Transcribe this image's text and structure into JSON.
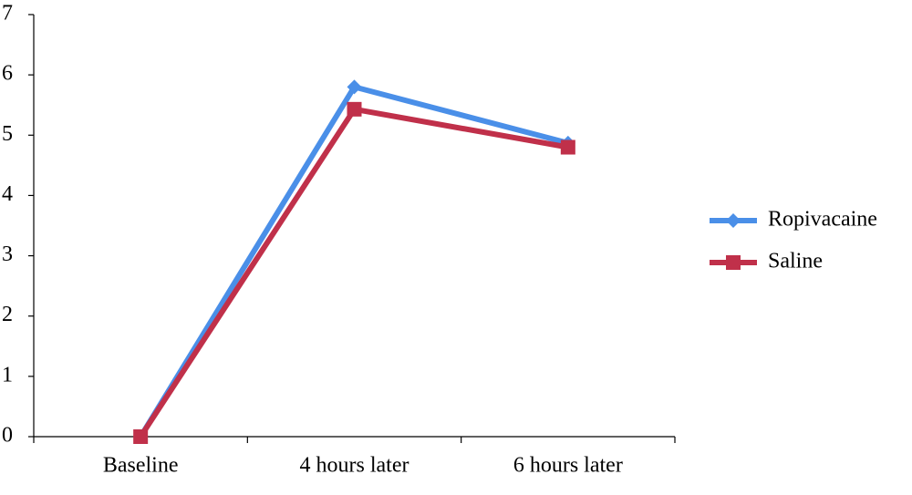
{
  "chart_data": {
    "type": "line",
    "categories": [
      "Baseline",
      "4 hours later",
      "6 hours later"
    ],
    "series": [
      {
        "name": "Ropivacaine",
        "color": "#4a8fe8",
        "marker": "diamond",
        "values": [
          0,
          5.8,
          4.87
        ]
      },
      {
        "name": "Saline",
        "color": "#c0304a",
        "marker": "square",
        "values": [
          0,
          5.43,
          4.8
        ]
      }
    ],
    "ylim": [
      0,
      7
    ],
    "yticks": [
      0,
      1,
      2,
      3,
      4,
      5,
      6,
      7
    ],
    "grid": false,
    "legend": "right"
  }
}
